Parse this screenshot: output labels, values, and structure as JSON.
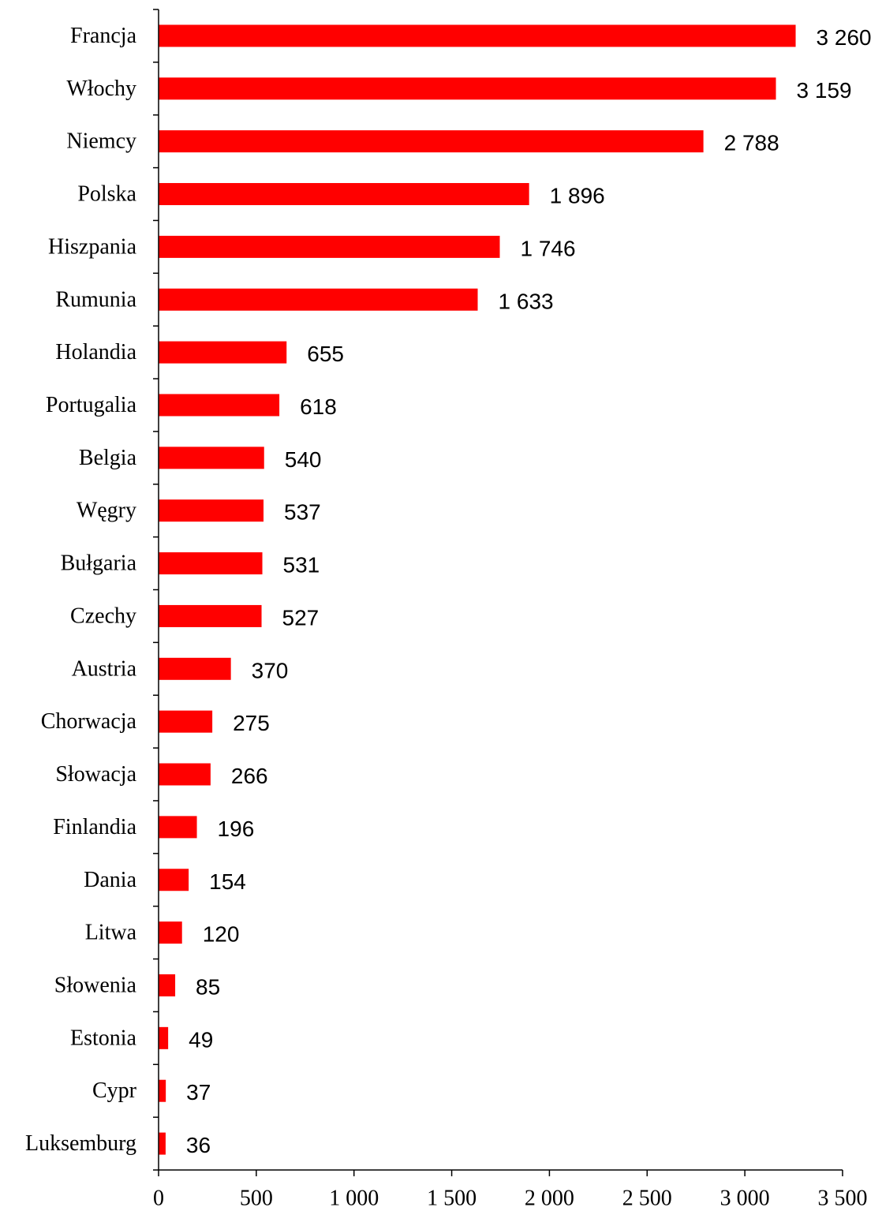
{
  "chart_data": {
    "type": "bar",
    "orientation": "horizontal",
    "categories": [
      "Francja",
      "Włochy",
      "Niemcy",
      "Polska",
      "Hiszpania",
      "Rumunia",
      "Holandia",
      "Portugalia",
      "Belgia",
      "Węgry",
      "Bułgaria",
      "Czechy",
      "Austria",
      "Chorwacja",
      "Słowacja",
      "Finlandia",
      "Dania",
      "Litwa",
      "Słowenia",
      "Estonia",
      "Cypr",
      "Luksemburg"
    ],
    "values": [
      3260,
      3159,
      2788,
      1896,
      1746,
      1633,
      655,
      618,
      540,
      537,
      531,
      527,
      370,
      275,
      266,
      196,
      154,
      120,
      85,
      49,
      37,
      36
    ],
    "data_labels": [
      "3 260",
      "3 159",
      "2 788",
      "1 896",
      "1 746",
      "1 633",
      "655",
      "618",
      "540",
      "537",
      "531",
      "527",
      "370",
      "275",
      "266",
      "196",
      "154",
      "120",
      "85",
      "49",
      "37",
      "36"
    ],
    "xlim": [
      0,
      3500
    ],
    "x_ticks": [
      0,
      500,
      1000,
      1500,
      2000,
      2500,
      3000,
      3500
    ],
    "x_tick_labels": [
      "0",
      "500",
      "1 000",
      "1 500",
      "2 000",
      "2 500",
      "3 000",
      "3 500"
    ],
    "bar_color": "#ff0000",
    "grid": false,
    "legend": "none",
    "title": "",
    "xlabel": "",
    "ylabel": ""
  }
}
